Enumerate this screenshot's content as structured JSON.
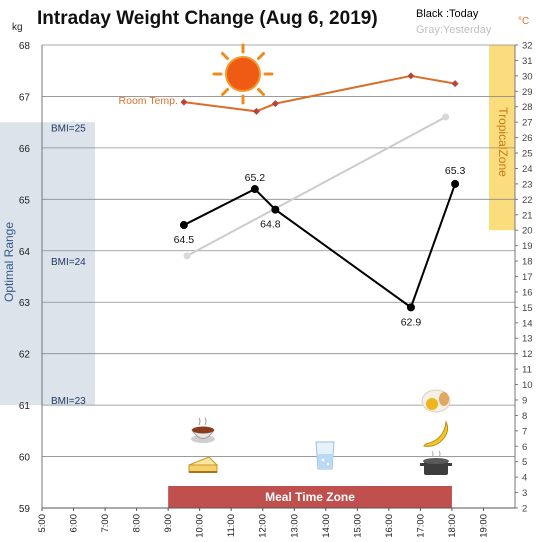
{
  "chart_data": {
    "type": "line",
    "title": "Intraday Weight Change (Aug 6, 2019)",
    "legend": {
      "today": "Black :Today",
      "yesterday": "Gray:Yesterday"
    },
    "left_unit": "kg",
    "right_unit": "°C",
    "ylim": [
      59,
      68
    ],
    "y_ticks": [
      "59",
      "60",
      "61",
      "62",
      "63",
      "64",
      "65",
      "66",
      "67",
      "68"
    ],
    "y2lim": [
      2,
      32
    ],
    "y2_ticks": [
      "2",
      "3",
      "4",
      "5",
      "6",
      "7",
      "8",
      "9",
      "10",
      "11",
      "12",
      "13",
      "14",
      "15",
      "16",
      "17",
      "18",
      "19",
      "20",
      "21",
      "22",
      "23",
      "24",
      "25",
      "26",
      "27",
      "28",
      "29",
      "30",
      "31",
      "32"
    ],
    "xlim": [
      5,
      20
    ],
    "x_ticks": [
      "5:00",
      "6:00",
      "7:00",
      "8:00",
      "9:00",
      "10:00",
      "11:00",
      "12:00",
      "13:00",
      "14:00",
      "15:00",
      "16:00",
      "17:00",
      "18:00",
      "19:00"
    ],
    "series": [
      {
        "key": "today",
        "color": "#000000",
        "x": [
          9.5,
          11.75,
          12.4,
          16.7,
          18.1
        ],
        "y": [
          64.5,
          65.2,
          64.8,
          62.9,
          65.3
        ],
        "labels": [
          "64.5",
          "65.2",
          "64.8",
          "62.9",
          "65.3"
        ]
      },
      {
        "key": "yesterday",
        "color": "#cccccc",
        "x": [
          9.6,
          17.8
        ],
        "y": [
          63.9,
          66.6
        ]
      },
      {
        "key": "room_temp",
        "name": "Room Temp.",
        "color": "#d9702a",
        "axis": "right",
        "x": [
          9.5,
          11.8,
          12.4,
          16.7,
          18.1
        ],
        "y": [
          28.3,
          27.7,
          28.2,
          30.0,
          29.5
        ]
      }
    ],
    "bands": {
      "optimal_range": {
        "label": "Optimal Range",
        "ymin": 61,
        "ymax": 66.5,
        "color": "#dde3ea"
      },
      "tropical_zone": {
        "label": "TropicalZone",
        "ymin": 20,
        "ymax": 32,
        "color": "#fbdd7e"
      },
      "meal_time_zone": {
        "label": "Meal Time Zone",
        "xmin": 9,
        "xmax": 18,
        "color": "#c0504d"
      }
    },
    "bmi_labels": [
      {
        "text": "BMI=25",
        "y": 66.4
      },
      {
        "text": "BMI=24",
        "y": 63.8
      },
      {
        "text": "BMI=23",
        "y": 61.1
      }
    ],
    "grid": true,
    "icons": {
      "sun": "sun-icon",
      "breakfast": [
        "soup-bowl-icon",
        "cheesecake-icon"
      ],
      "lunch": [
        "water-glass-icon"
      ],
      "dinner": [
        "fried-egg-icon",
        "banana-icon",
        "cooking-pot-icon"
      ]
    }
  }
}
